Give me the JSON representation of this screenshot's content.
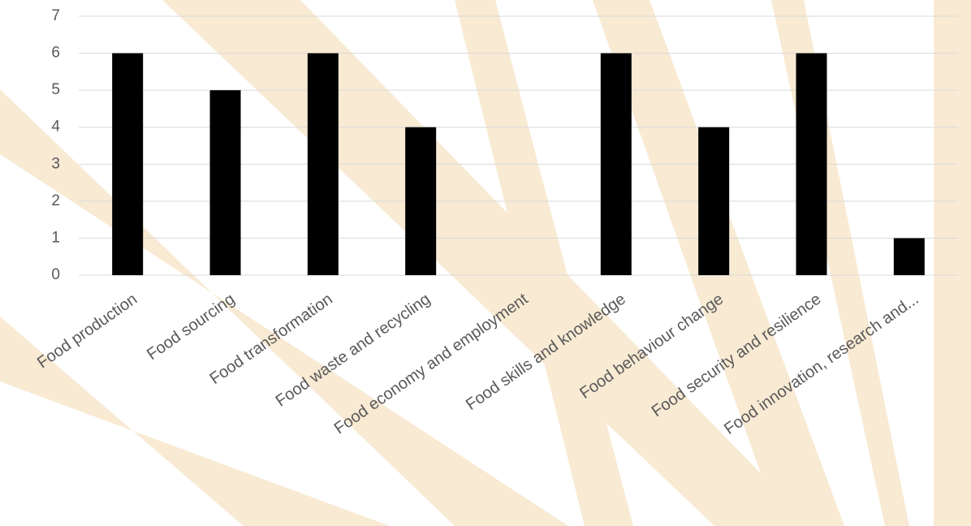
{
  "chart_data": {
    "type": "bar",
    "categories": [
      "Food production",
      "Food sourcing",
      "Food transformation",
      "Food waste and recycling",
      "Food economy and employment",
      "Food skills and knowledge",
      "Food behaviour change",
      "Food security and resilience",
      "Food innovation, research and..."
    ],
    "values": [
      6,
      5,
      6,
      4,
      0,
      6,
      4,
      6,
      1
    ],
    "color": "#000000",
    "ylim": [
      0,
      7
    ],
    "yticks": [
      0,
      1,
      2,
      3,
      4,
      5,
      6,
      7
    ],
    "grid": true
  }
}
